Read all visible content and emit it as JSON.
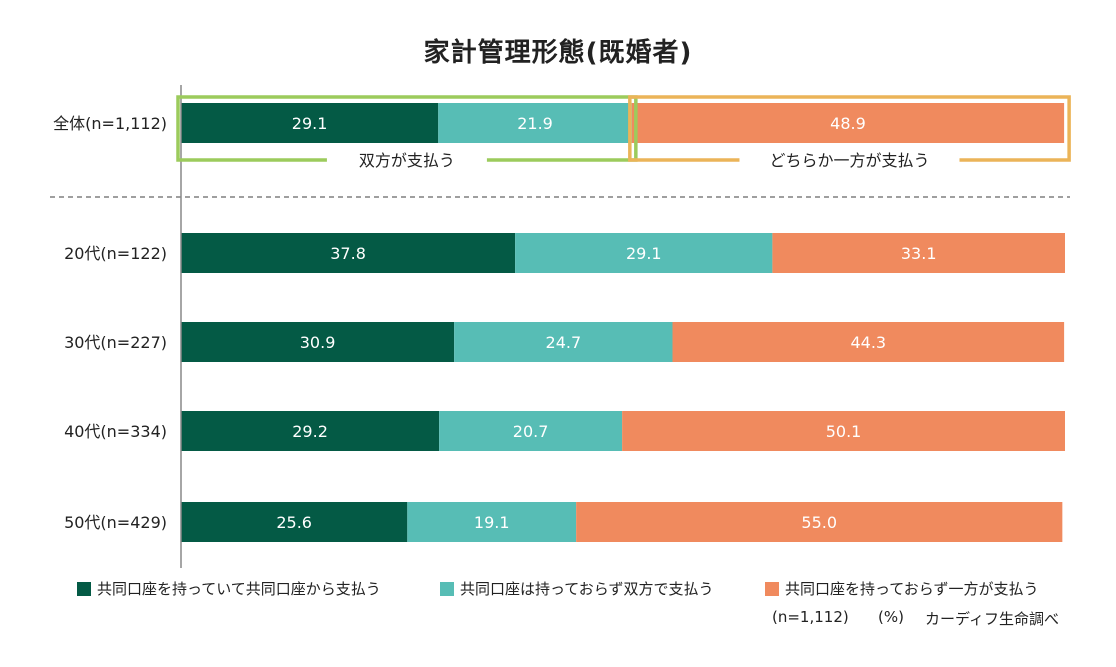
{
  "colors": {
    "dark_green": "#045A45",
    "teal": "#57BDB5",
    "orange": "#F08A5E",
    "box_green": "#9CCB5C",
    "box_orange": "#EBB458",
    "axis": "#888888"
  },
  "chart_data": {
    "type": "bar",
    "orientation": "horizontal",
    "stacked": true,
    "title": "家計管理形態(既婚者)",
    "categories": [
      "全体(n=1,112)",
      "20代(n=122)",
      "30代(n=227)",
      "40代(n=334)",
      "50代(n=429)"
    ],
    "series": [
      {
        "name": "共同口座を持っていて共同口座から支払う",
        "color": "#045A45",
        "values": [
          29.1,
          37.8,
          30.9,
          29.2,
          25.6
        ]
      },
      {
        "name": "共同口座は持っておらず双方で支払う",
        "color": "#57BDB5",
        "values": [
          21.9,
          29.1,
          24.7,
          20.7,
          19.1
        ]
      },
      {
        "name": "共同口座を持っておらず一方が支払う",
        "color": "#F08A5E",
        "values": [
          48.9,
          33.1,
          44.3,
          50.1,
          55.0
        ]
      }
    ],
    "data_labels": [
      [
        "29.1",
        "21.9",
        "48.9"
      ],
      [
        "37.8",
        "29.1",
        "33.1"
      ],
      [
        "30.9",
        "24.7",
        "44.3"
      ],
      [
        "29.2",
        "20.7",
        "50.1"
      ],
      [
        "25.6",
        "19.1",
        "55.0"
      ]
    ],
    "xlim": [
      0,
      100
    ],
    "annotations": {
      "both_pay": "双方が支払う",
      "one_pays": "どちらか一方が支払う"
    },
    "note_n": "(n=1,112)",
    "unit": "(%)",
    "source": "カーディフ生命調べ"
  }
}
